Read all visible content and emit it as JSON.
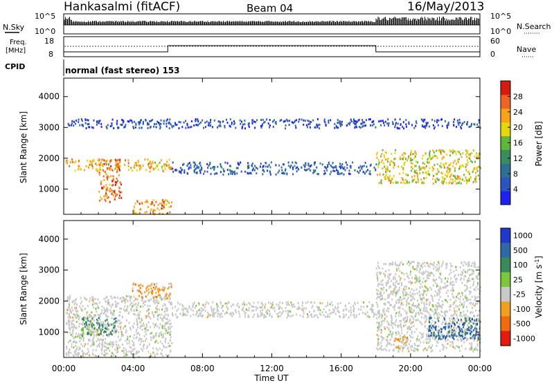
{
  "header": {
    "station": "Hankasalmi (fitACF)",
    "beam": "Beam 04",
    "date": "16/May/2013"
  },
  "top_panels": {
    "nsky_label": "N.Sky",
    "nsky_ticks": [
      "10^5",
      "10^0"
    ],
    "nsearch_label": "N.Search",
    "nsearch_ticks": [
      "10^5",
      "10^0"
    ],
    "freq_label": [
      "Freq.",
      "[MHz]"
    ],
    "freq_ticks": [
      "18",
      "8"
    ],
    "nave_label": "Nave",
    "nave_ticks": [
      "60",
      "0"
    ],
    "cpid_label": "CPID",
    "cpid_text": "normal (fast stereo) 153"
  },
  "x_axis": {
    "label": "Time UT",
    "ticks": [
      "00:00",
      "04:00",
      "08:00",
      "12:00",
      "16:00",
      "20:00",
      "00:00"
    ]
  },
  "chart_data": [
    {
      "type": "heatmap",
      "title": "",
      "xlabel": "Time UT",
      "ylabel": "Slant Range [km]",
      "xlim": [
        0,
        24
      ],
      "ylim": [
        180,
        4600
      ],
      "y_ticks": [
        1000,
        2000,
        3000,
        4000
      ],
      "colorbar": {
        "label": "Power [dB]",
        "range": [
          0,
          32
        ],
        "ticks": [
          4,
          8,
          12,
          16,
          20,
          24,
          28
        ],
        "colors": [
          "#1e20f0",
          "#2a55c0",
          "#2f6f93",
          "#3c8d5e",
          "#5fb63b",
          "#e6d60d",
          "#f7a21b",
          "#ee6422",
          "#d41c0c"
        ]
      },
      "features": [
        {
          "t_start": 0.1,
          "t_end": 6.2,
          "range_min": 1600,
          "range_max": 2000,
          "level_db": 22
        },
        {
          "t_start": 2.0,
          "t_end": 3.3,
          "range_min": 600,
          "range_max": 2000,
          "level_db": 26
        },
        {
          "t_start": 6.2,
          "t_end": 18.0,
          "range_min": 1500,
          "range_max": 1900,
          "level_db": 7
        },
        {
          "t_start": 18.0,
          "t_end": 24.0,
          "range_min": 1200,
          "range_max": 2300,
          "level_db": 20
        },
        {
          "t_start": 4.0,
          "t_end": 6.2,
          "range_min": 200,
          "range_max": 700,
          "level_db": 24
        },
        {
          "t_start": 0.2,
          "t_end": 24.0,
          "range_min": 3000,
          "range_max": 3300,
          "level_db": 5
        }
      ]
    },
    {
      "type": "heatmap",
      "title": "",
      "xlabel": "Time UT",
      "ylabel": "Slant Range [km]",
      "xlim": [
        0,
        24
      ],
      "ylim": [
        180,
        4600
      ],
      "y_ticks": [
        1000,
        2000,
        3000,
        4000
      ],
      "colorbar": {
        "label": "Velocity [m s^-1]",
        "ticks": [
          "1000",
          "500",
          "100",
          "25",
          "-25",
          "-100",
          "-500",
          "-1000"
        ],
        "colors": [
          "#2038c8",
          "#2f68a6",
          "#3a8a5a",
          "#7cc63a",
          "#c8c8c8",
          "#f0a020",
          "#f06a10",
          "#e21a10"
        ]
      },
      "features": [
        {
          "t_start": 0.1,
          "t_end": 6.2,
          "range_min": 200,
          "range_max": 2200,
          "velocity": "-25..25"
        },
        {
          "t_start": 6.2,
          "t_end": 18.0,
          "range_min": 1500,
          "range_max": 2000,
          "velocity": "-25..25"
        },
        {
          "t_start": 18.0,
          "t_end": 24.0,
          "range_min": 400,
          "range_max": 3300,
          "velocity": "-25..25"
        },
        {
          "t_start": 1.0,
          "t_end": 3.0,
          "range_min": 900,
          "range_max": 1500,
          "velocity": "100..500"
        },
        {
          "t_start": 3.8,
          "t_end": 6.2,
          "range_min": 2100,
          "range_max": 2600,
          "velocity": "-500..-100"
        },
        {
          "t_start": 19.0,
          "t_end": 19.8,
          "range_min": 500,
          "range_max": 900,
          "velocity": "-500..-100"
        },
        {
          "t_start": 21.0,
          "t_end": 24.0,
          "range_min": 800,
          "range_max": 1500,
          "velocity": "100..1000"
        }
      ]
    }
  ]
}
